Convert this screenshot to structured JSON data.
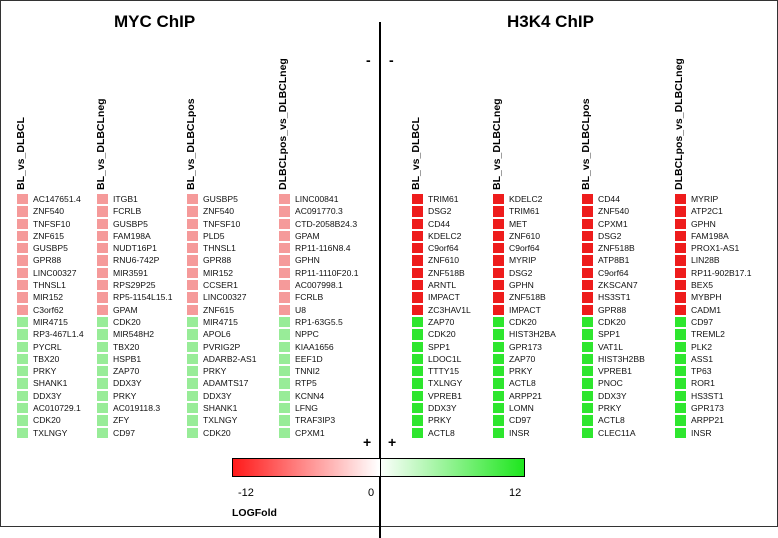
{
  "panels": {
    "left_title": "MYC ChIP",
    "right_title": "H3K4 ChIP"
  },
  "signs": {
    "top_left": "-",
    "top_right": "-",
    "bottom_left": "+",
    "bottom_right": "+"
  },
  "colors": {
    "strong_up": "#ee1c1c",
    "weak_up": "#f59a9a",
    "strong_down": "#2ee62e",
    "weak_down": "#98ec98"
  },
  "columns": [
    {
      "header": "BL_vs_DLBCL",
      "shade": "weak",
      "genes": [
        "AC147651.4",
        "ZNF540",
        "TNFSF10",
        "ZNF615",
        "GUSBP5",
        "GPR88",
        "LINC00327",
        "THNSL1",
        "MIR152",
        "C3orf62",
        "MIR4715",
        "RP3-467L1.4",
        "PYCRL",
        "TBX20",
        "PRKY",
        "SHANK1",
        "DDX3Y",
        "AC010729.1",
        "CDK20",
        "TXLNGY"
      ]
    },
    {
      "header": "BL_vs_DLBCLneg",
      "shade": "weak",
      "genes": [
        "ITGB1",
        "FCRLB",
        "GUSBP5",
        "FAM198A",
        "NUDT16P1",
        "RNU6-742P",
        "MIR3591",
        "RPS29P25",
        "RP5-1154L15.1",
        "GPAM",
        "CDK20",
        "MIR548H2",
        "TBX20",
        "HSPB1",
        "ZAP70",
        "DDX3Y",
        "PRKY",
        "AC019118.3",
        "ZFY",
        "CD97"
      ]
    },
    {
      "header": "BL_vs_DLBCLpos",
      "shade": "weak",
      "genes": [
        "GUSBP5",
        "ZNF540",
        "TNFSF10",
        "PLD5",
        "THNSL1",
        "GPR88",
        "MIR152",
        "CCSER1",
        "LINC00327",
        "ZNF615",
        "MIR4715",
        "APOL6",
        "PVRIG2P",
        "ADARB2-AS1",
        "PRKY",
        "ADAMTS17",
        "DDX3Y",
        "SHANK1",
        "TXLNGY",
        "CDK20"
      ]
    },
    {
      "header": "DLBCLpos_vs_DLBCLneg",
      "shade": "weak",
      "genes": [
        "LINC00841",
        "AC091770.3",
        "CTD-2058B24.3",
        "GPAM",
        "RP11-116N8.4",
        "GPHN",
        "RP11-1110F20.1",
        "AC007998.1",
        "FCRLB",
        "U8",
        "RP1-63G5.5",
        "NPPC",
        "KIAA1656",
        "EEF1D",
        "TNNI2",
        "RTP5",
        "KCNN4",
        "LFNG",
        "TRAF3IP3",
        "CPXM1"
      ]
    },
    {
      "header": "BL_vs_DLBCL",
      "shade": "strong",
      "genes": [
        "TRIM61",
        "DSG2",
        "CD44",
        "KDELC2",
        "C9orf64",
        "ZNF610",
        "ZNF518B",
        "ARNTL",
        "IMPACT",
        "ZC3HAV1L",
        "ZAP70",
        "CDK20",
        "SPP1",
        "LDOC1L",
        "TTTY15",
        "TXLNGY",
        "VPREB1",
        "DDX3Y",
        "PRKY",
        "ACTL8"
      ]
    },
    {
      "header": "BL_vs_DLBCLneg",
      "shade": "strong",
      "genes": [
        "KDELC2",
        "TRIM61",
        "MET",
        "ZNF610",
        "C9orf64",
        "MYRIP",
        "DSG2",
        "GPHN",
        "ZNF518B",
        "IMPACT",
        "CDK20",
        "HIST3H2BA",
        "GPR173",
        "ZAP70",
        "PRKY",
        "ACTL8",
        "ARPP21",
        "LOMN",
        "CD97",
        "INSR"
      ]
    },
    {
      "header": "BL_vs_DLBCLpos",
      "shade": "strong",
      "genes": [
        "CD44",
        "ZNF540",
        "CPXM1",
        "DSG2",
        "ZNF518B",
        "ATP8B1",
        "C9orf64",
        "ZKSCAN7",
        "HS3ST1",
        "GPR88",
        "CDK20",
        "SPP1",
        "VAT1L",
        "HIST3H2BB",
        "VPREB1",
        "PNOC",
        "DDX3Y",
        "PRKY",
        "ACTL8",
        "CLEC11A"
      ]
    },
    {
      "header": "DLBCLpos_vs_DLBCLneg",
      "shade": "strong",
      "genes": [
        "MYRIP",
        "ATP2C1",
        "GPHN",
        "FAM198A",
        "PROX1-AS1",
        "LIN28B",
        "RP11-902B17.1",
        "BEX5",
        "MYBPH",
        "CADM1",
        "CD97",
        "TREML2",
        "PLK2",
        "ASS1",
        "TP63",
        "ROR1",
        "HS3ST1",
        "GPR173",
        "ARPP21",
        "INSR"
      ]
    }
  ],
  "legend": {
    "min_label": "-12",
    "mid_label": "0",
    "max_label": "12",
    "title": "LOGFold"
  }
}
